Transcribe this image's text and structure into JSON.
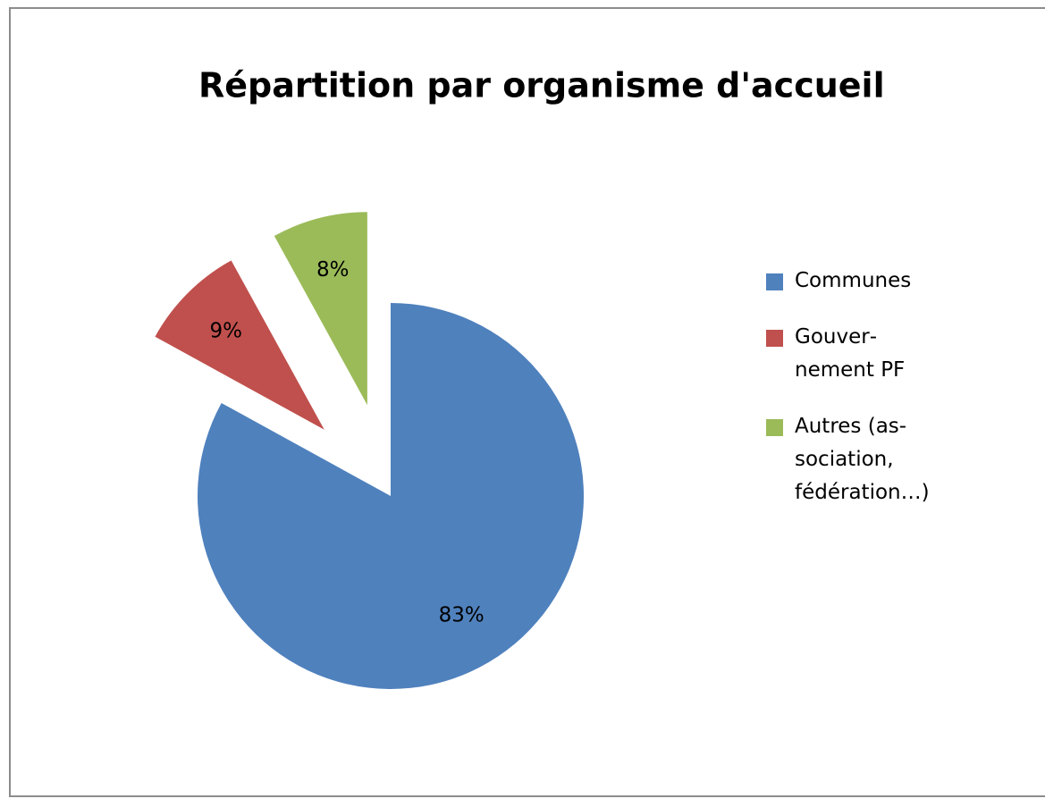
{
  "chart_data": {
    "type": "pie",
    "title": "Répartition par organisme d'accueil",
    "categories": [
      "Communes",
      "Gouver­nement PF",
      "Autres (as­sociation, fédération…)"
    ],
    "values": [
      83,
      9,
      8
    ],
    "value_labels": [
      "83%",
      "9%",
      "8%"
    ],
    "colors": [
      "#4f81bd",
      "#c0504d",
      "#9bbb59"
    ],
    "exploded": [
      false,
      true,
      true
    ],
    "legend": "right"
  }
}
